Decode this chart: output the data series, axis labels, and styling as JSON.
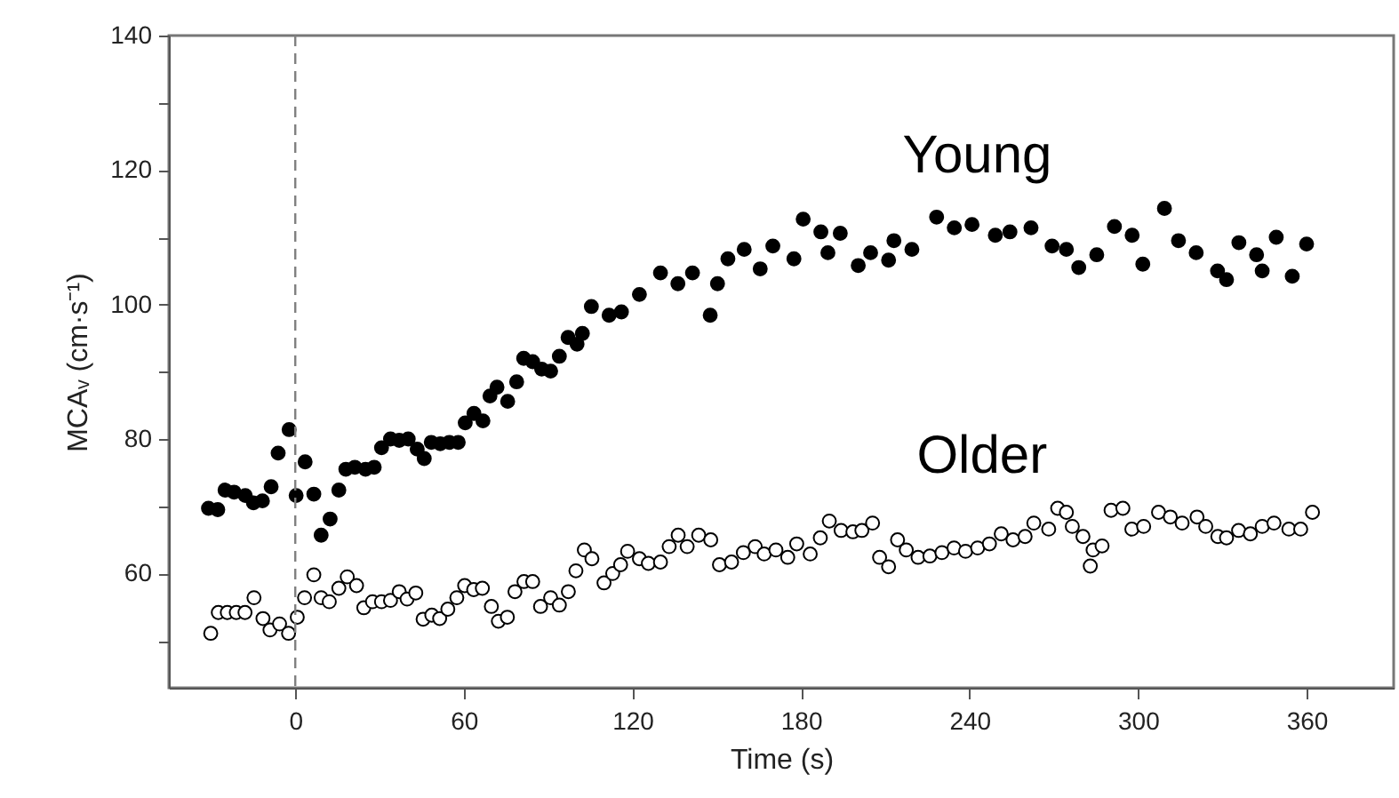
{
  "chart_data": {
    "type": "scatter",
    "xlabel": "Time (s)",
    "ylabel": "MCAᵥ (cm·s⁻¹)",
    "xlim": [
      -45,
      391
    ],
    "xticks": [
      0,
      60,
      120,
      180,
      240,
      300,
      360
    ],
    "ylim": [
      43,
      140
    ],
    "yticks": [
      {
        "value": 50,
        "label": null
      },
      60,
      {
        "value": 70,
        "label": null
      },
      80,
      {
        "value": 90,
        "label": null
      },
      100,
      {
        "value": 110,
        "label": null
      },
      120,
      {
        "value": 130,
        "label": null
      },
      140
    ],
    "grid": false,
    "marker": "circle",
    "ref_lines": [
      {
        "axis": "x",
        "value": 0,
        "color": "#808080",
        "line_style": "dashed"
      }
    ],
    "series": [
      {
        "name": "Young",
        "color": "#000000",
        "x": [
          -30.9,
          -27.6,
          -25,
          -21.8,
          -17.8,
          -14.9,
          -11.7,
          -8.6,
          -6.1,
          -2.2,
          0.3,
          3.5,
          6.6,
          9.2,
          12.4,
          15.5,
          18,
          21.2,
          25,
          28.1,
          30.7,
          33.9,
          37,
          40.2,
          43.4,
          45.9,
          48.4,
          51.6,
          54.8,
          58,
          60.5,
          63.6,
          66.8,
          69.3,
          71.8,
          75.6,
          78.8,
          81.3,
          84.5,
          87.7,
          90.9,
          94,
          97.1,
          100.3,
          102.2,
          105.4,
          111.7,
          116.1,
          122.5,
          130,
          136.2,
          141.4,
          147.7,
          150.3,
          154,
          159.8,
          165.5,
          170,
          177.5,
          180.8,
          187.1,
          189.6,
          194,
          200.4,
          204.8,
          211.2,
          213.1,
          219.5,
          228.3,
          234.6,
          240.9,
          249.2,
          254.4,
          261.9,
          269.4,
          274.5,
          278.9,
          285.3,
          291.6,
          297.9,
          301.7,
          309.4,
          314.4,
          320.7,
          328.3,
          331.5,
          335.9,
          342.2,
          344.2,
          349.2,
          354.9,
          360
        ],
        "values": [
          69.7,
          69.5,
          72.4,
          72.1,
          71.6,
          70.5,
          70.8,
          72.9,
          77.9,
          81.4,
          71.6,
          76.6,
          71.8,
          65.7,
          68.1,
          72.4,
          75.5,
          75.8,
          75.5,
          75.8,
          78.7,
          80,
          79.8,
          80,
          78.5,
          77.1,
          79.5,
          79.3,
          79.5,
          79.5,
          82.4,
          83.8,
          82.7,
          86.4,
          87.7,
          85.6,
          88.5,
          92,
          91.5,
          90.4,
          90.1,
          92.3,
          95.1,
          94.1,
          95.7,
          99.7,
          98.4,
          98.9,
          101.5,
          104.7,
          103.1,
          104.7,
          98.4,
          103.1,
          106.8,
          108.2,
          105.3,
          108.7,
          106.8,
          112.7,
          110.8,
          107.7,
          110.6,
          105.8,
          107.7,
          106.6,
          109.5,
          108.2,
          113,
          111.4,
          111.9,
          110.3,
          110.8,
          111.4,
          108.7,
          108.2,
          105.5,
          107.4,
          111.6,
          110.3,
          106,
          114.3,
          109.5,
          107.7,
          105,
          103.7,
          109.2,
          107.4,
          105,
          110,
          104.2,
          109
        ]
      },
      {
        "name": "Older",
        "color": "#ffffff",
        "x": [
          -30.1,
          -27.4,
          -24.2,
          -21,
          -17.9,
          -14.7,
          -11.5,
          -9,
          -5.6,
          -2.4,
          0.7,
          3.3,
          6.6,
          9.2,
          12.1,
          15.5,
          18.5,
          21.8,
          24.4,
          27.5,
          30.7,
          33.9,
          37,
          39.8,
          42.9,
          45.5,
          48.6,
          51.4,
          54.3,
          57.5,
          60.3,
          63.5,
          66.6,
          69.8,
          72.3,
          75.5,
          78.2,
          81.4,
          84.5,
          87.3,
          90.9,
          94,
          97.2,
          99.9,
          102.9,
          105.6,
          109.9,
          113,
          115.8,
          118.3,
          122.5,
          125.7,
          130,
          133.1,
          136.3,
          139.5,
          143.6,
          147.9,
          151,
          155.3,
          159.5,
          163.7,
          166.9,
          171.1,
          175.3,
          178.5,
          183.3,
          186.9,
          190.1,
          194.3,
          198.5,
          201.7,
          205.5,
          208,
          211.2,
          214.4,
          217.5,
          221.7,
          225.9,
          230.2,
          234.5,
          238.6,
          242.9,
          247.1,
          251.3,
          255.5,
          259.8,
          262.9,
          268.2,
          271.4,
          274.5,
          276.6,
          280.4,
          283,
          284,
          287.2,
          290.4,
          294.6,
          297.8,
          302,
          307.3,
          311.5,
          315.7,
          321,
          324.1,
          328.4,
          331.5,
          335.8,
          340,
          344.2,
          348.4,
          353.7,
          357.9,
          362.1
        ],
        "values": [
          51.1,
          54.2,
          54.2,
          54.2,
          54.2,
          56.4,
          53.3,
          51.6,
          52.5,
          51.1,
          53.5,
          56.4,
          59.8,
          56.4,
          55.8,
          57.8,
          59.5,
          58.2,
          54.9,
          55.8,
          55.8,
          56,
          57.3,
          56.2,
          57.1,
          53.2,
          53.8,
          53.3,
          54.7,
          56.4,
          58.2,
          57.6,
          57.8,
          55.1,
          52.9,
          53.5,
          57.3,
          58.8,
          58.8,
          55.1,
          56.4,
          55.3,
          57.3,
          60.4,
          63.5,
          62.2,
          58.6,
          60,
          61.3,
          63.3,
          62.2,
          61.5,
          61.7,
          64,
          65.7,
          64,
          65.7,
          65,
          61.3,
          61.7,
          63.1,
          64,
          62.9,
          63.5,
          62.4,
          64.4,
          62.9,
          65.3,
          67.8,
          66.4,
          66.2,
          66.4,
          67.5,
          62.4,
          61,
          65,
          63.5,
          62.4,
          62.6,
          63.1,
          63.8,
          63.3,
          63.8,
          64.4,
          65.9,
          65,
          65.5,
          67.5,
          66.6,
          69.7,
          69.1,
          67,
          65.5,
          61.1,
          63.5,
          64.1,
          69.4,
          69.7,
          66.6,
          67,
          69.1,
          68.4,
          67.5,
          68.4,
          67,
          65.5,
          65.3,
          66.4,
          65.9,
          67,
          67.5,
          66.6,
          66.6,
          69.1
        ]
      }
    ]
  }
}
